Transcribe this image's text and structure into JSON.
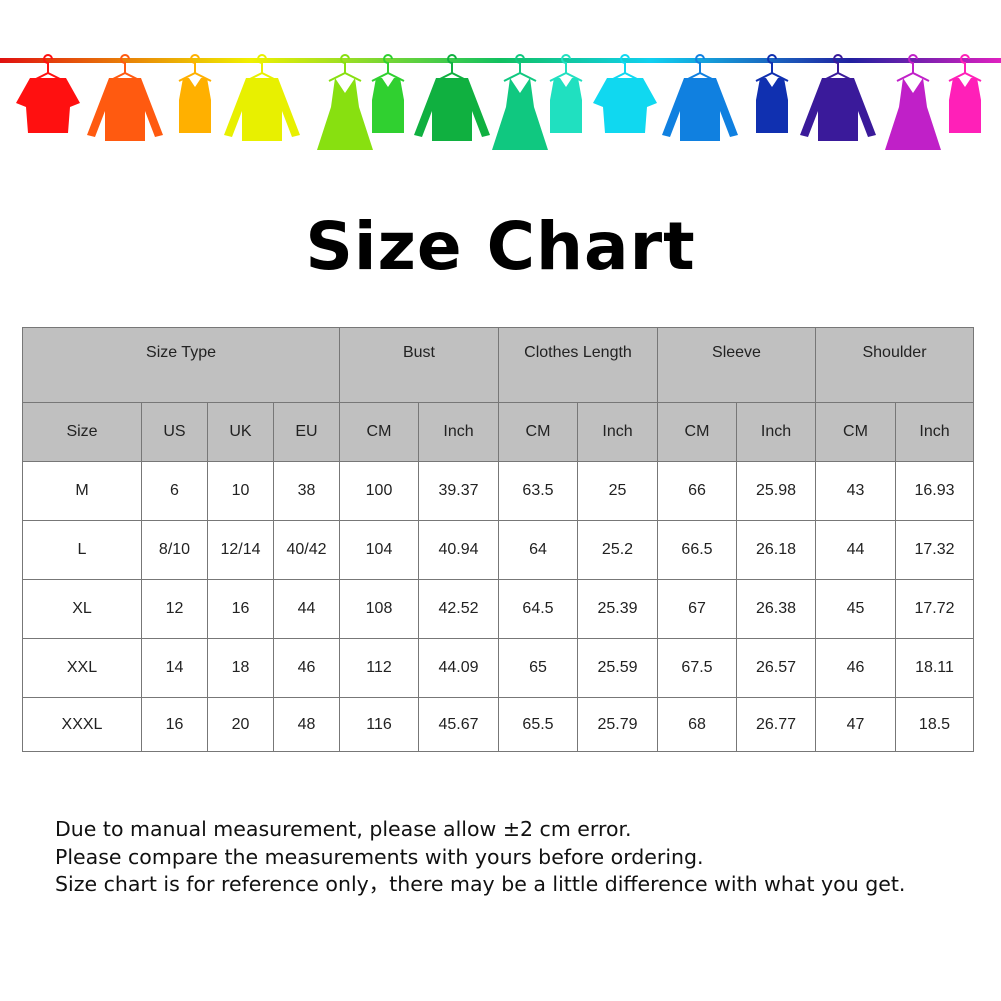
{
  "banner": {
    "icon": "clothes-on-hanger-rack",
    "colors": [
      "#ff1010",
      "#ff5a10",
      "#ffb000",
      "#e8f000",
      "#88e010",
      "#30d030",
      "#10b040",
      "#10c880",
      "#20e0c0",
      "#10d8f0",
      "#1080e0",
      "#1030b0",
      "#3a1a9a",
      "#c020c8",
      "#ff20b8"
    ]
  },
  "title": "Size Chart",
  "table": {
    "group_headers": [
      "Size Type",
      "Bust",
      "Clothes Length",
      "Sleeve",
      "Shoulder"
    ],
    "sub_headers": [
      "Size",
      "US",
      "UK",
      "EU",
      "CM",
      "Inch",
      "CM",
      "Inch",
      "CM",
      "Inch",
      "CM",
      "Inch"
    ],
    "rows": [
      [
        "M",
        "6",
        "10",
        "38",
        "100",
        "39.37",
        "63.5",
        "25",
        "66",
        "25.98",
        "43",
        "16.93"
      ],
      [
        "L",
        "8/10",
        "12/14",
        "40/42",
        "104",
        "40.94",
        "64",
        "25.2",
        "66.5",
        "26.18",
        "44",
        "17.32"
      ],
      [
        "XL",
        "12",
        "16",
        "44",
        "108",
        "42.52",
        "64.5",
        "25.39",
        "67",
        "26.38",
        "45",
        "17.72"
      ],
      [
        "XXL",
        "14",
        "18",
        "46",
        "112",
        "44.09",
        "65",
        "25.59",
        "67.5",
        "26.57",
        "46",
        "18.11"
      ],
      [
        "XXXL",
        "16",
        "20",
        "48",
        "116",
        "45.67",
        "65.5",
        "25.79",
        "68",
        "26.77",
        "47",
        "18.5"
      ]
    ]
  },
  "notes": [
    "Due to manual measurement, please allow ±2 cm error.",
    "Please compare the measurements with yours before ordering.",
    "Size chart is for reference only，there may be a little difference with what you get."
  ]
}
